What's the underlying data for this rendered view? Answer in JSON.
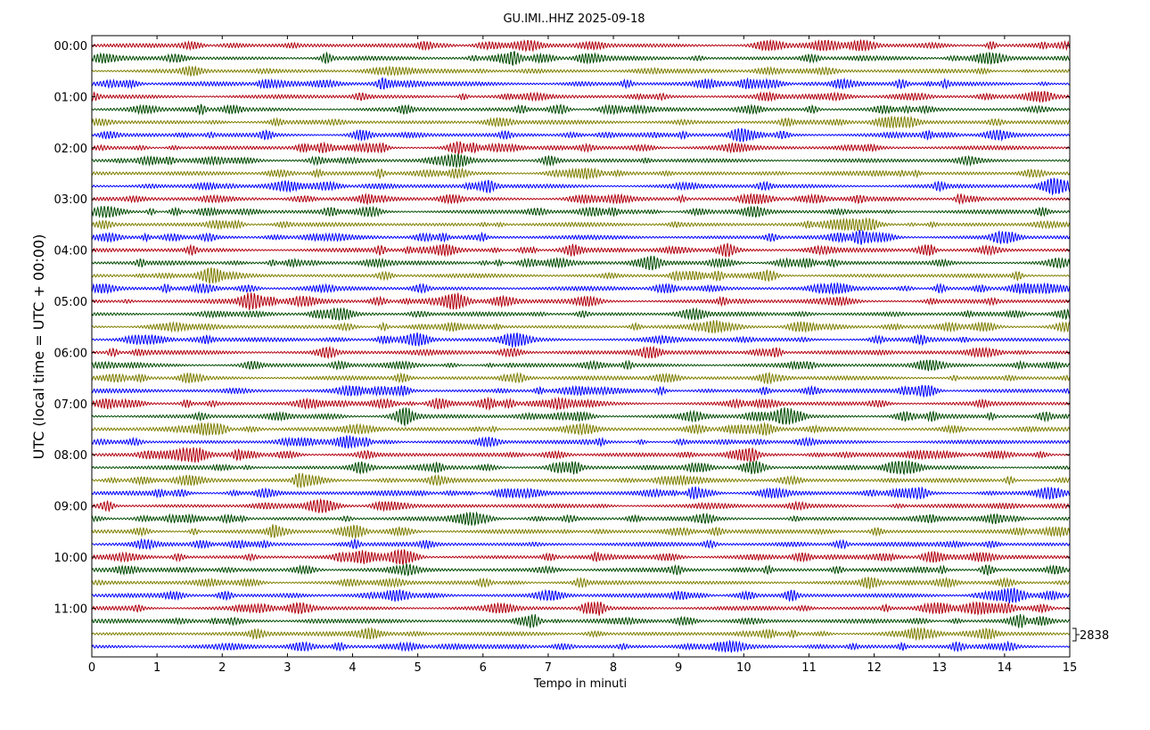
{
  "chart_data": {
    "type": "line",
    "title": "GU.IMI..HHZ 2025-09-18",
    "xlabel": "Tempo in minuti",
    "ylabel": "UTC (local time = UTC + 00:00)",
    "xlim": [
      0,
      15
    ],
    "x_ticks": [
      "0",
      "1",
      "2",
      "3",
      "4",
      "5",
      "6",
      "7",
      "8",
      "9",
      "10",
      "11",
      "12",
      "13",
      "14",
      "15"
    ],
    "y_tick_labels": [
      "00:00",
      "01:00",
      "02:00",
      "03:00",
      "04:00",
      "05:00",
      "06:00",
      "07:00",
      "08:00",
      "09:00",
      "10:00",
      "11:00"
    ],
    "trace_count": 48,
    "minutes_per_trace": 15,
    "trace_colors": [
      "#b2000f",
      "#004c00",
      "#7f7f00",
      "#0000ff"
    ],
    "scale_label": "2838",
    "grid": false
  }
}
